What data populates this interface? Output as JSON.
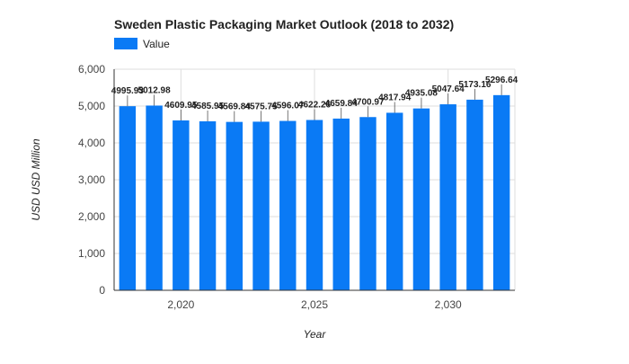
{
  "chart_data": {
    "type": "bar",
    "title": "Sweden Plastic Packaging Market Outlook (2018 to 2032)",
    "legend": [
      {
        "name": "Value",
        "color": "#0a7af5"
      }
    ],
    "legend_position": "top-left",
    "xlabel": "Year",
    "ylabel": "USD USD Million",
    "ylim": [
      0,
      6000
    ],
    "yticks": [
      0,
      1000,
      2000,
      3000,
      4000,
      5000,
      6000
    ],
    "ytick_labels": [
      "0",
      "1,000",
      "2,000",
      "3,000",
      "4,000",
      "5,000",
      "6,000"
    ],
    "xticks": [
      2020,
      2025,
      2030
    ],
    "xtick_labels": [
      "2,020",
      "2,025",
      "2,030"
    ],
    "grid": true,
    "x": [
      2018,
      2019,
      2020,
      2021,
      2022,
      2023,
      2024,
      2025,
      2026,
      2027,
      2028,
      2029,
      2030,
      2031,
      2032
    ],
    "values": [
      4995.93,
      5012.98,
      4609.95,
      4585.95,
      4569.84,
      4575.75,
      4596.07,
      4622.26,
      4659.84,
      4700.97,
      4817.94,
      4935.08,
      5047.64,
      5173.16,
      5296.64
    ],
    "data_labels": [
      "4995.93",
      "5012.98",
      "4609.95",
      "4585.95",
      "4569.84",
      "4575.75",
      "4596.07",
      "4622.26",
      "4659.84",
      "4700.97",
      "4817.94",
      "4935.08",
      "5047.64",
      "5173.16",
      "5296.64"
    ],
    "bar_color": "#0a7af5"
  }
}
